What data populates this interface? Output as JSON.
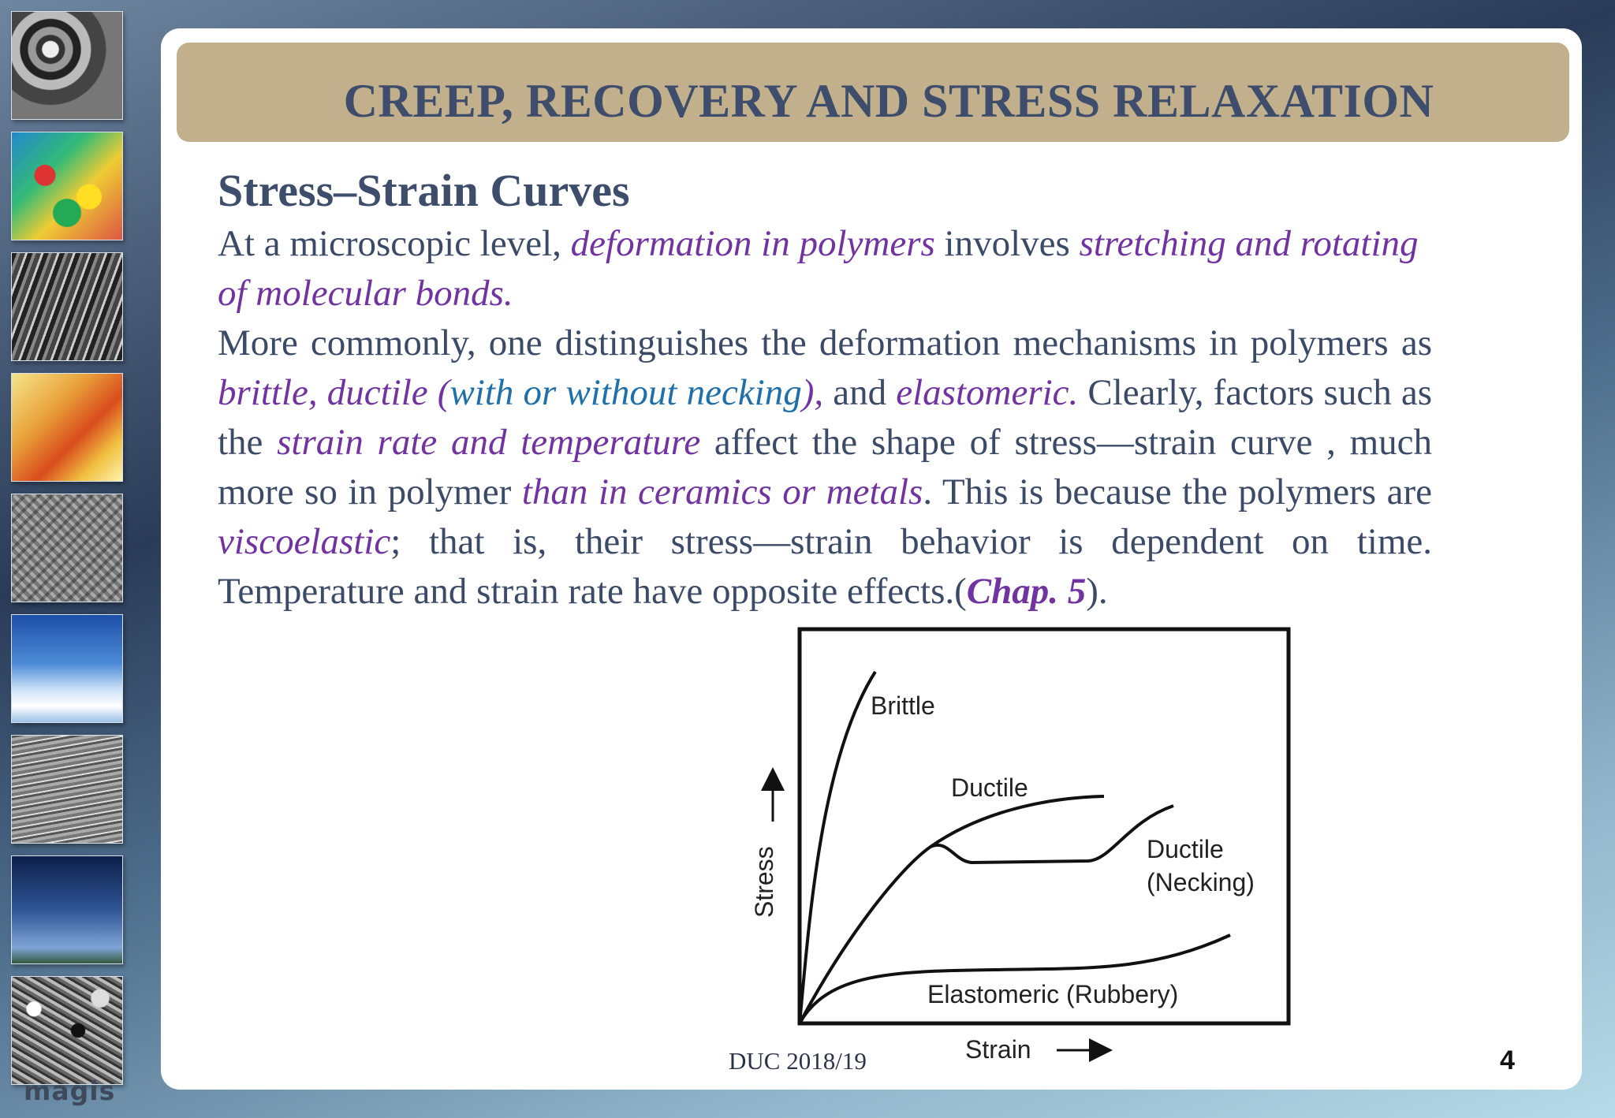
{
  "sidebar": {
    "thumbnails": [
      "turbine-icon",
      "stress-map-icon",
      "fibers-icon",
      "crystal-icon",
      "microstructure-icon",
      "airplane-icon",
      "grain-icon",
      "wind-turbine-icon",
      "particles-icon"
    ],
    "logo": "magis"
  },
  "slide": {
    "title": "CREEP, RECOVERY AND STRESS RELAXATION",
    "subtitle": "Stress–Strain Curves",
    "p1": {
      "t1": "At a microscopic level, ",
      "e1": "deformation in polymers",
      "t2": " involves ",
      "e2": "stretching and rotating of molecular bonds."
    },
    "p2": {
      "t1": "More commonly, one distinguishes the deformation mechanisms in polymers as ",
      "e1": "brittle, ductile (",
      "e2": "with or without necking",
      "e3": "),",
      "t2": " and ",
      "e4": "elastomeric.",
      "t3": " Clearly, factors such as the ",
      "e5": "strain rate and temperature",
      "t4": " affect the shape of stress—strain curve , much more  so in polymer ",
      "e6": "than in ceramics or metals",
      "t5": ". This is because the polymers are ",
      "e7": "viscoelastic",
      "t6": "; that is, their stress—strain behavior is dependent on time. Temperature and strain rate have opposite effects.(",
      "chap": "Chap. 5",
      "t7": ")."
    },
    "footer": "DUC 2018/19",
    "page_number": "4"
  },
  "chart_data": {
    "type": "line",
    "xlabel": "Strain",
    "ylabel": "Stress",
    "series": [
      {
        "name": "Brittle"
      },
      {
        "name": "Ductile"
      },
      {
        "name": "Ductile (Necking)"
      },
      {
        "name": "Elastomeric (Rubbery)"
      }
    ],
    "labels": {
      "brittle": "Brittle",
      "ductile": "Ductile",
      "necking_line1": "Ductile",
      "necking_line2": "(Necking)",
      "elastomeric": "Elastomeric (Rubbery)"
    }
  }
}
